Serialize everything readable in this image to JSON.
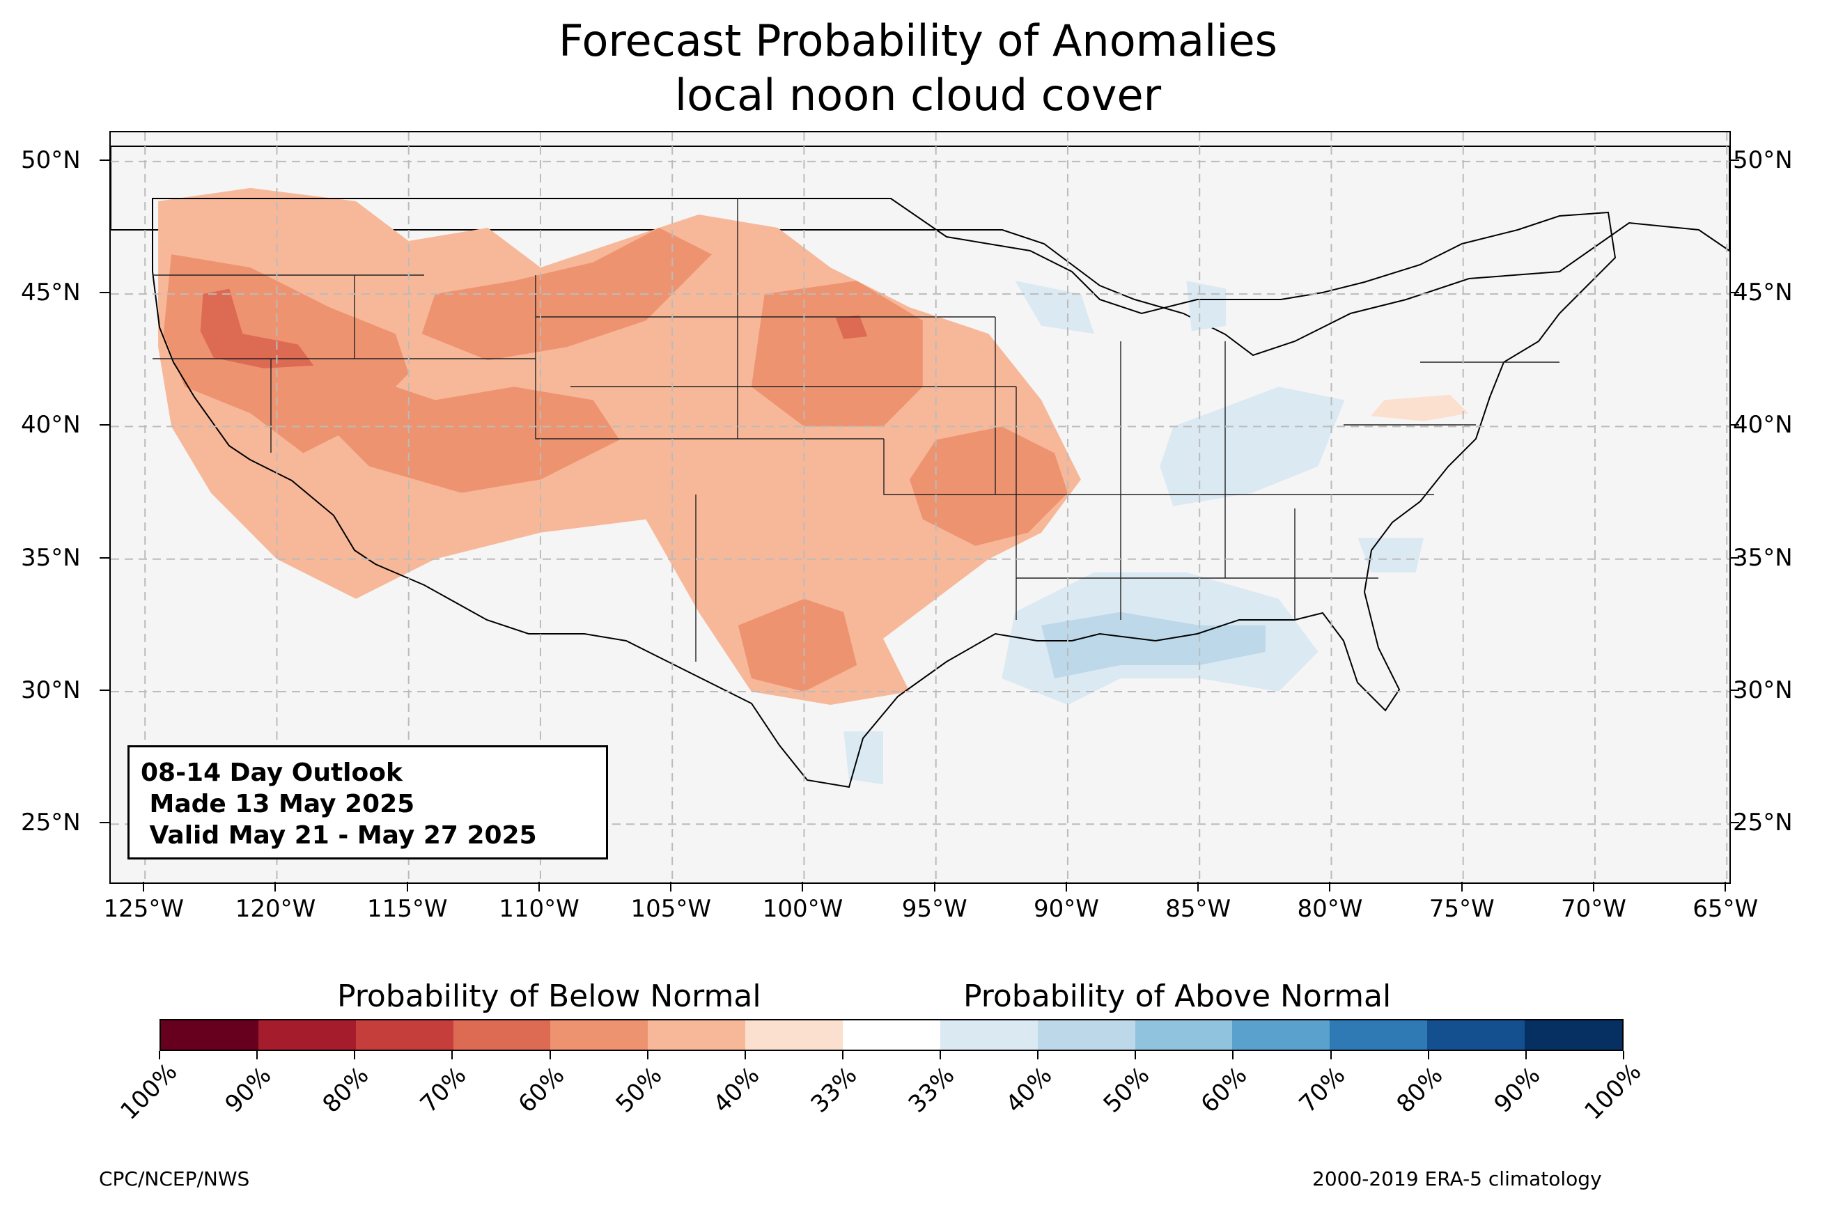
{
  "title": {
    "line1": "Forecast Probability of Anomalies",
    "line2": "local noon cloud cover"
  },
  "map": {
    "projection": "plate-carree",
    "lon_range": [
      -126.3,
      -64.9
    ],
    "lat_range": [
      22.8,
      51.1
    ],
    "background_color": "#f5f5f5",
    "lat_labels": [
      "25°N",
      "30°N",
      "35°N",
      "40°N",
      "45°N",
      "50°N"
    ],
    "lat_values": [
      25,
      30,
      35,
      40,
      45,
      50
    ],
    "lon_labels": [
      "125°W",
      "120°W",
      "115°W",
      "110°W",
      "105°W",
      "100°W",
      "95°W",
      "90°W",
      "85°W",
      "80°W",
      "75°W",
      "70°W",
      "65°W"
    ],
    "lon_values": [
      -125,
      -120,
      -115,
      -110,
      -105,
      -100,
      -95,
      -90,
      -85,
      -80,
      -75,
      -70,
      -65
    ],
    "gridlines": true,
    "below_normal_regions": [
      {
        "name": "pacific-northwest-and-great-basin",
        "level": "50%",
        "outline": [
          [
            -124.5,
            48.5
          ],
          [
            -121,
            49
          ],
          [
            -117,
            48.5
          ],
          [
            -115,
            47
          ],
          [
            -112,
            47.5
          ],
          [
            -110,
            46
          ],
          [
            -107,
            47
          ],
          [
            -104,
            48
          ],
          [
            -101,
            47.5
          ],
          [
            -99,
            46
          ],
          [
            -96,
            44.5
          ],
          [
            -93,
            43.5
          ],
          [
            -91,
            41
          ],
          [
            -89.5,
            38
          ],
          [
            -91,
            36
          ],
          [
            -93,
            35
          ],
          [
            -95,
            33.5
          ],
          [
            -97,
            32
          ],
          [
            -96,
            30
          ],
          [
            -99,
            29.5
          ],
          [
            -102,
            30
          ],
          [
            -104,
            33
          ],
          [
            -106,
            36.5
          ],
          [
            -110,
            36
          ],
          [
            -114,
            35
          ],
          [
            -117,
            33.5
          ],
          [
            -120,
            35
          ],
          [
            -122.5,
            37.5
          ],
          [
            -124,
            40
          ],
          [
            -124.5,
            43
          ]
        ]
      },
      {
        "name": "oregon-nevada-core",
        "level": "60%",
        "outline": [
          [
            -124,
            46.5
          ],
          [
            -121,
            46
          ],
          [
            -118,
            44.5
          ],
          [
            -115.5,
            43.5
          ],
          [
            -115,
            42
          ],
          [
            -117,
            40
          ],
          [
            -119,
            39
          ],
          [
            -121,
            40.5
          ],
          [
            -123.5,
            41.5
          ],
          [
            -124.3,
            43.5
          ]
        ]
      },
      {
        "name": "oregon-max",
        "level": "70%",
        "outline": [
          [
            -122.8,
            45
          ],
          [
            -121.8,
            45.2
          ],
          [
            -121.3,
            43.5
          ],
          [
            -119.2,
            43.1
          ],
          [
            -118.6,
            42.3
          ],
          [
            -120.5,
            42.2
          ],
          [
            -122.4,
            42.6
          ],
          [
            -122.9,
            43.6
          ]
        ]
      },
      {
        "name": "wyoming-montana",
        "level": "60%",
        "outline": [
          [
            -114,
            45
          ],
          [
            -111,
            45.5
          ],
          [
            -108,
            46.2
          ],
          [
            -105.5,
            47.5
          ],
          [
            -103.5,
            46.5
          ],
          [
            -106,
            44
          ],
          [
            -109,
            43
          ],
          [
            -112,
            42.5
          ],
          [
            -114.5,
            43.5
          ]
        ]
      },
      {
        "name": "utah-colorado",
        "level": "60%",
        "outline": [
          [
            -117,
            42
          ],
          [
            -114,
            41
          ],
          [
            -111,
            41.5
          ],
          [
            -108,
            41
          ],
          [
            -107,
            39.5
          ],
          [
            -110,
            38
          ],
          [
            -113,
            37.5
          ],
          [
            -116.5,
            38.5
          ],
          [
            -118,
            40
          ]
        ]
      },
      {
        "name": "nebraska-kansas",
        "level": "60%",
        "outline": [
          [
            -101.5,
            45
          ],
          [
            -98,
            45.5
          ],
          [
            -95.5,
            44
          ],
          [
            -95.5,
            41.5
          ],
          [
            -97,
            40
          ],
          [
            -100,
            40
          ],
          [
            -102,
            41.5
          ]
        ]
      },
      {
        "name": "nebraska-max",
        "level": "70%",
        "outline": [
          [
            -98.8,
            44.1
          ],
          [
            -97.9,
            44.2
          ],
          [
            -97.6,
            43.4
          ],
          [
            -98.5,
            43.3
          ]
        ]
      },
      {
        "name": "missouri-arkansas",
        "level": "60%",
        "outline": [
          [
            -95,
            39.5
          ],
          [
            -92.5,
            40
          ],
          [
            -90.5,
            39
          ],
          [
            -90,
            37.5
          ],
          [
            -91.5,
            36
          ],
          [
            -93.5,
            35.5
          ],
          [
            -95.5,
            36.5
          ],
          [
            -96,
            38
          ]
        ]
      },
      {
        "name": "west-texas",
        "level": "60%",
        "outline": [
          [
            -102.5,
            32.5
          ],
          [
            -100,
            33.5
          ],
          [
            -98.5,
            33
          ],
          [
            -98,
            31
          ],
          [
            -100,
            30
          ],
          [
            -102,
            30.5
          ]
        ]
      },
      {
        "name": "pennsylvania-new-jersey",
        "level": "40%",
        "outline": [
          [
            -78,
            41
          ],
          [
            -75.5,
            41.2
          ],
          [
            -74.8,
            40.5
          ],
          [
            -76.5,
            40.2
          ],
          [
            -78.5,
            40.4
          ]
        ]
      }
    ],
    "above_normal_regions": [
      {
        "name": "gulf-coast",
        "level": "40%",
        "outline": [
          [
            -92,
            33
          ],
          [
            -89,
            34.5
          ],
          [
            -85.5,
            34.5
          ],
          [
            -82,
            33.5
          ],
          [
            -80.5,
            31.5
          ],
          [
            -82,
            30
          ],
          [
            -85,
            30.5
          ],
          [
            -88,
            30.5
          ],
          [
            -90,
            29.5
          ],
          [
            -92.5,
            30.5
          ]
        ]
      },
      {
        "name": "gulf-coast-core",
        "level": "50%",
        "outline": [
          [
            -91,
            32.5
          ],
          [
            -88,
            33
          ],
          [
            -85,
            32.5
          ],
          [
            -82.5,
            32.5
          ],
          [
            -82.5,
            31.5
          ],
          [
            -85,
            31
          ],
          [
            -88,
            31
          ],
          [
            -90.5,
            30.5
          ]
        ]
      },
      {
        "name": "ohio-valley",
        "level": "40%",
        "outline": [
          [
            -86,
            40
          ],
          [
            -82,
            41.5
          ],
          [
            -79.5,
            41
          ],
          [
            -80.5,
            38.5
          ],
          [
            -83,
            37.5
          ],
          [
            -86,
            37
          ],
          [
            -86.5,
            38.5
          ]
        ]
      },
      {
        "name": "michigan-lower",
        "level": "40%",
        "outline": [
          [
            -85.5,
            45.5
          ],
          [
            -84,
            45.2
          ],
          [
            -84,
            43.8
          ],
          [
            -85.3,
            43.6
          ]
        ]
      },
      {
        "name": "north-carolina",
        "level": "40%",
        "outline": [
          [
            -79,
            35.8
          ],
          [
            -76.5,
            35.8
          ],
          [
            -76.8,
            34.5
          ],
          [
            -78.5,
            34.5
          ]
        ]
      },
      {
        "name": "south-texas",
        "level": "40%",
        "outline": [
          [
            -98.5,
            28.5
          ],
          [
            -97,
            28.5
          ],
          [
            -97,
            26.5
          ],
          [
            -98.3,
            26.7
          ]
        ]
      },
      {
        "name": "minnesota-wisconsin",
        "level": "40%",
        "outline": [
          [
            -92,
            45.5
          ],
          [
            -89.5,
            45
          ],
          [
            -89,
            43.5
          ],
          [
            -91,
            43.8
          ]
        ]
      }
    ],
    "annotation": {
      "line1": "08-14 Day Outlook",
      "line2": " Made 13 May 2025",
      "line3": " Valid May 21 - May 27 2025"
    }
  },
  "colorbar": {
    "below_label": "Probability of Below Normal",
    "above_label": "Probability of Above Normal",
    "colors": [
      "#67001f",
      "#a51d2c",
      "#c53e3c",
      "#dd6a53",
      "#ee9370",
      "#f7b899",
      "#fbe0cf",
      "#ffffff",
      "#dbe9f2",
      "#bcd8e9",
      "#8fc3de",
      "#5aa1cd",
      "#2f79b5",
      "#14508f",
      "#053061"
    ],
    "tick_labels": [
      "100%",
      "90%",
      "80%",
      "70%",
      "60%",
      "50%",
      "40%",
      "33%",
      "33%",
      "40%",
      "50%",
      "60%",
      "70%",
      "80%",
      "90%",
      "100%"
    ]
  },
  "footer": {
    "left": "CPC/NCEP/NWS",
    "right": "2000-2019 ERA-5 climatology"
  }
}
